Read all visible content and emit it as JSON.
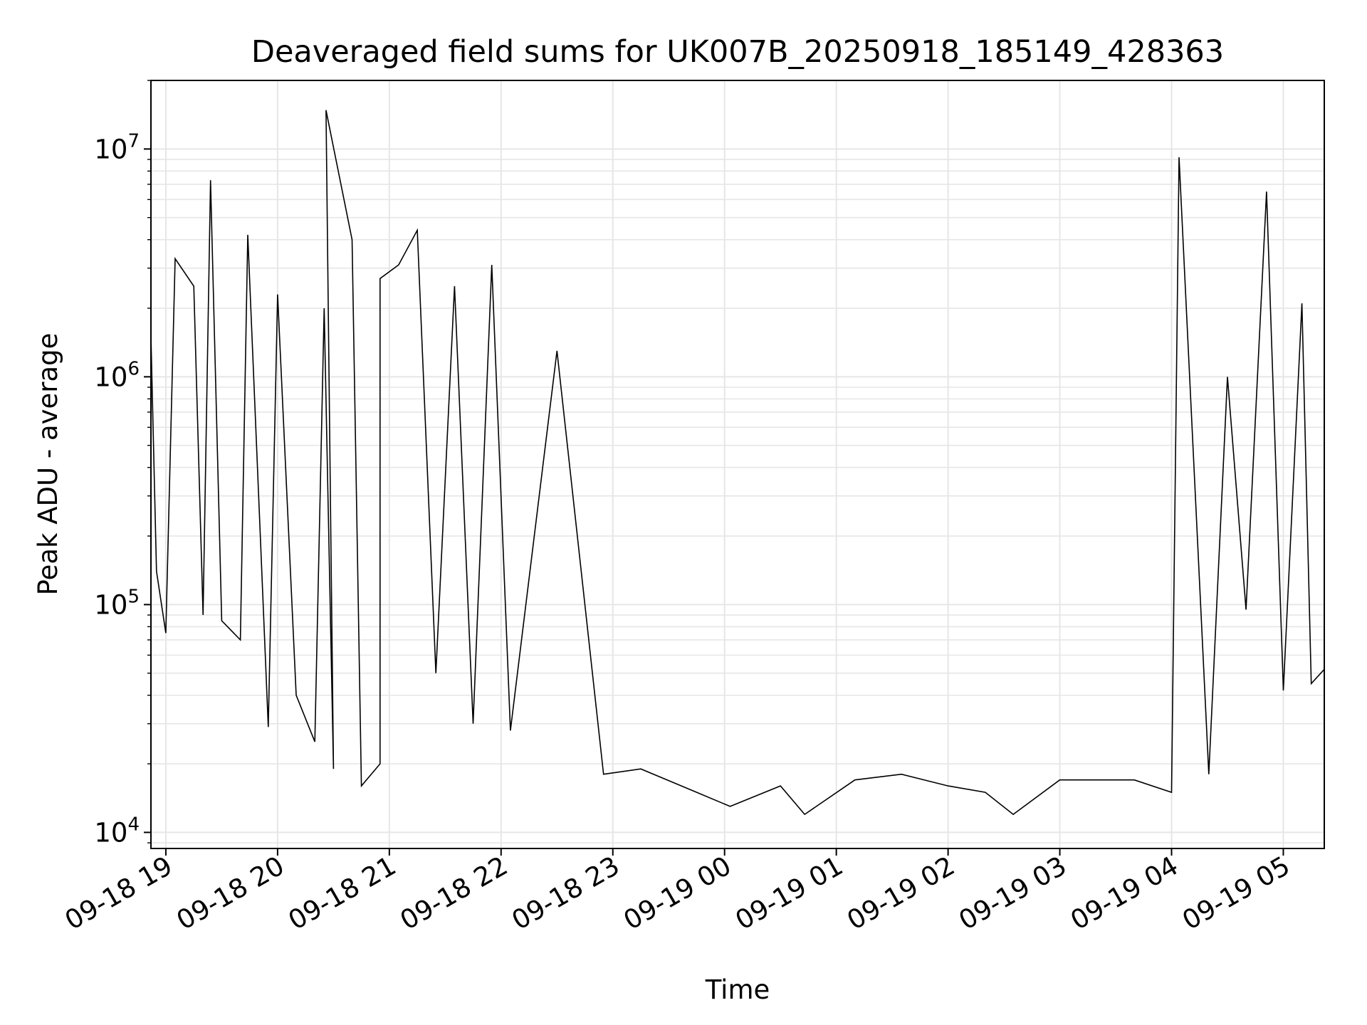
{
  "chart_data": {
    "type": "line",
    "title": "Deaveraged field sums for UK007B_20250918_185149_428363",
    "xlabel": "Time",
    "ylabel": "Peak ADU - average",
    "yscale": "log",
    "ylim": [
      8500,
      20000000
    ],
    "xlim": [
      "2025-09-18 18:52",
      "2025-09-19 05:22"
    ],
    "grid": true,
    "line_color": "#000000",
    "x_ticks": [
      "09-18 19",
      "09-18 20",
      "09-18 21",
      "09-18 22",
      "09-18 23",
      "09-19 00",
      "09-19 01",
      "09-19 02",
      "09-19 03",
      "09-19 04",
      "09-19 05"
    ],
    "y_ticks": [
      {
        "base": "10",
        "exp": "4",
        "value": 10000
      },
      {
        "base": "10",
        "exp": "5",
        "value": 100000
      },
      {
        "base": "10",
        "exp": "6",
        "value": 1000000
      },
      {
        "base": "10",
        "exp": "7",
        "value": 10000000
      }
    ],
    "series": [
      {
        "points": [
          [
            "2025-09-18 18:52",
            1500000
          ],
          [
            "2025-09-18 18:55",
            140000
          ],
          [
            "2025-09-18 19:00",
            75000
          ],
          [
            "2025-09-18 19:05",
            3300000
          ],
          [
            "2025-09-18 19:15",
            2500000
          ],
          [
            "2025-09-18 19:20",
            90000
          ],
          [
            "2025-09-18 19:24",
            7300000
          ],
          [
            "2025-09-18 19:30",
            85000
          ],
          [
            "2025-09-18 19:40",
            70000
          ],
          [
            "2025-09-18 19:44",
            4200000
          ],
          [
            "2025-09-18 19:55",
            29000
          ],
          [
            "2025-09-18 20:00",
            2300000
          ],
          [
            "2025-09-18 20:10",
            40000
          ],
          [
            "2025-09-18 20:20",
            25000
          ],
          [
            "2025-09-18 20:25",
            2000000
          ],
          [
            "2025-09-18 20:30",
            19000
          ],
          [
            "2025-09-18 20:26",
            14800000
          ],
          [
            "2025-09-18 20:40",
            4000000
          ],
          [
            "2025-09-18 20:45",
            16000
          ],
          [
            "2025-09-18 20:55",
            20000
          ],
          [
            "2025-09-18 20:55",
            2700000
          ],
          [
            "2025-09-18 21:05",
            3100000
          ],
          [
            "2025-09-18 21:15",
            4400000
          ],
          [
            "2025-09-18 21:25",
            50000
          ],
          [
            "2025-09-18 21:35",
            2500000
          ],
          [
            "2025-09-18 21:45",
            30000
          ],
          [
            "2025-09-18 21:55",
            3100000
          ],
          [
            "2025-09-18 22:05",
            28000
          ],
          [
            "2025-09-18 22:30",
            1300000
          ],
          [
            "2025-09-18 22:55",
            18000
          ],
          [
            "2025-09-18 23:15",
            19000
          ],
          [
            "2025-09-18 23:45",
            15000
          ],
          [
            "2025-09-19 00:03",
            13000
          ],
          [
            "2025-09-19 00:30",
            16000
          ],
          [
            "2025-09-19 00:43",
            12000
          ],
          [
            "2025-09-19 01:10",
            17000
          ],
          [
            "2025-09-19 01:35",
            18000
          ],
          [
            "2025-09-19 02:00",
            16000
          ],
          [
            "2025-09-19 02:20",
            15000
          ],
          [
            "2025-09-19 02:35",
            12000
          ],
          [
            "2025-09-19 03:00",
            17000
          ],
          [
            "2025-09-19 03:40",
            17000
          ],
          [
            "2025-09-19 04:00",
            15000
          ],
          [
            "2025-09-19 04:04",
            9200000
          ],
          [
            "2025-09-19 04:20",
            18000
          ],
          [
            "2025-09-19 04:30",
            1000000
          ],
          [
            "2025-09-19 04:40",
            95000
          ],
          [
            "2025-09-19 04:51",
            6500000
          ],
          [
            "2025-09-19 05:00",
            42000
          ],
          [
            "2025-09-19 05:10",
            2100000
          ],
          [
            "2025-09-19 05:15",
            45000
          ],
          [
            "2025-09-19 05:22",
            52000
          ]
        ]
      }
    ]
  }
}
